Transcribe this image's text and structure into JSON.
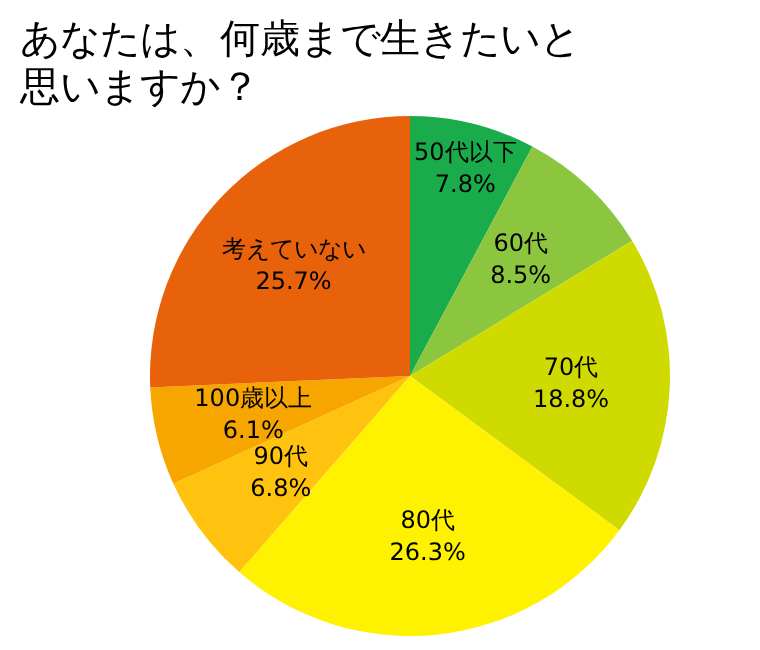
{
  "chart_data": {
    "type": "pie",
    "title": "あなたは、何歳まで生きたいと思いますか？",
    "categories": [
      "50代以下",
      "60代",
      "70代",
      "80代",
      "90代",
      "100歳以上",
      "考えていない"
    ],
    "values": [
      7.8,
      8.5,
      18.8,
      26.3,
      6.8,
      6.1,
      25.7
    ],
    "colors": [
      "#1aab4b",
      "#8cc63f",
      "#cfdb00",
      "#fff200",
      "#ffc20e",
      "#f7a600",
      "#e8620c"
    ],
    "value_labels": [
      "7.8%",
      "8.5%",
      "18.8%",
      "26.3%",
      "6.8%",
      "6.1%",
      "25.7%"
    ]
  }
}
